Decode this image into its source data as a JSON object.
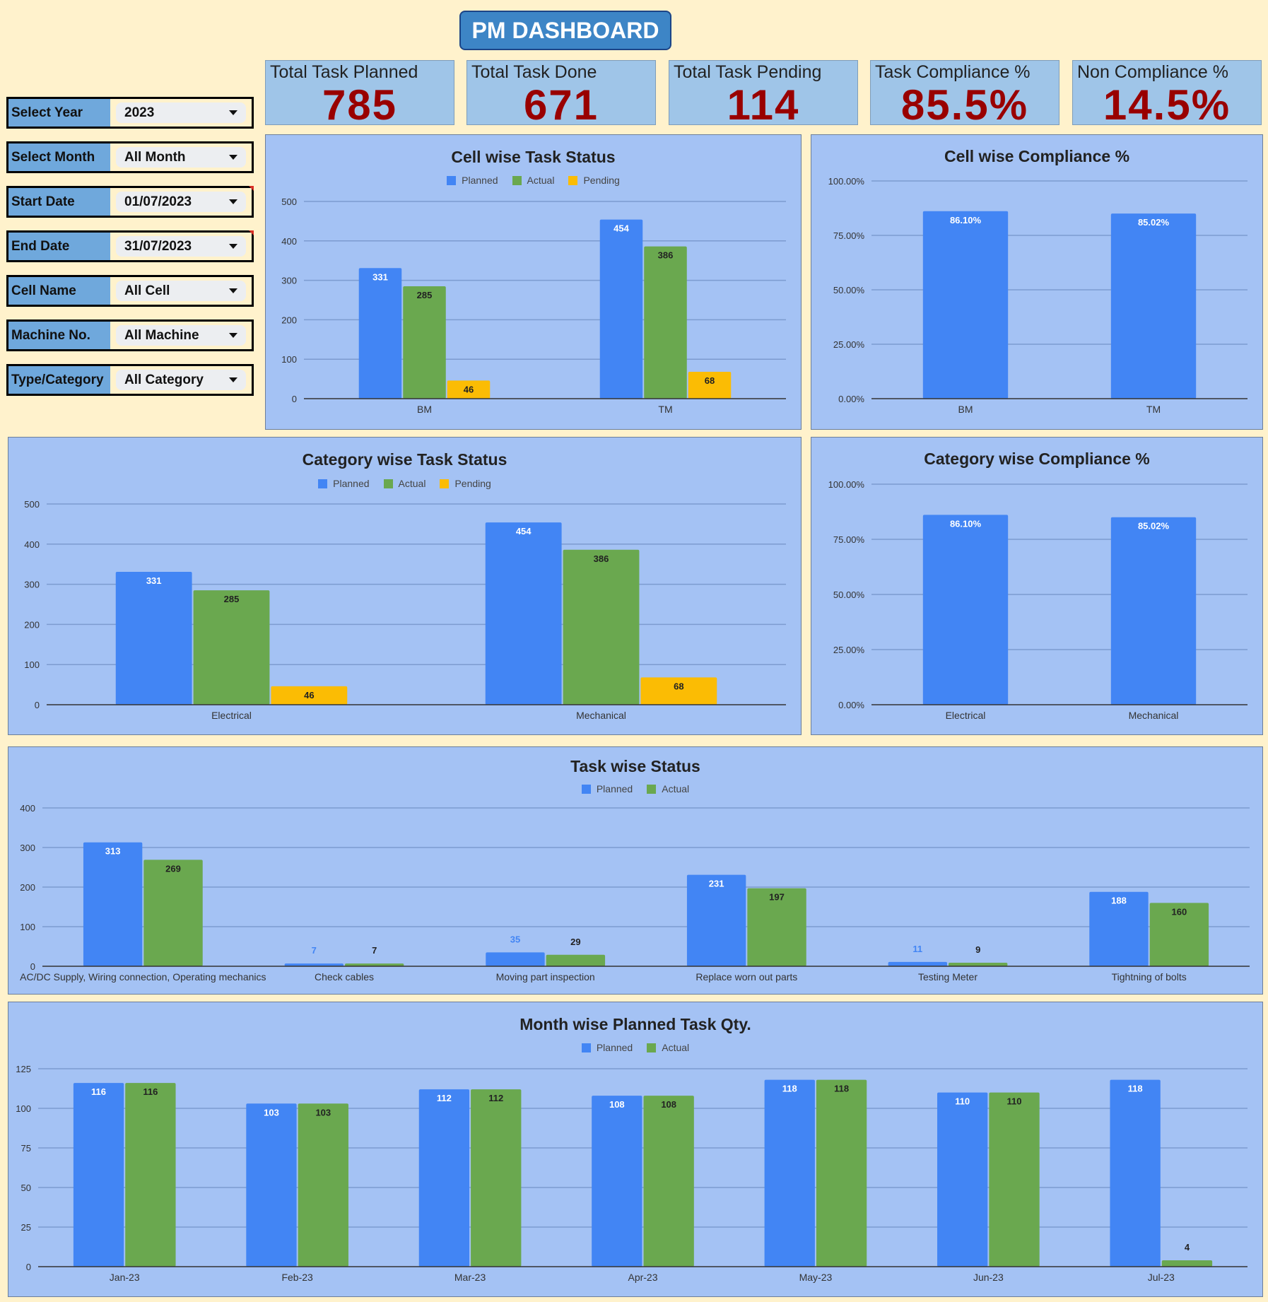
{
  "header": {
    "title": "PM DASHBOARD"
  },
  "kpis": [
    {
      "label": "Total Task Planned",
      "value": "785"
    },
    {
      "label": "Total Task Done",
      "value": "671"
    },
    {
      "label": "Total Task Pending",
      "value": "114"
    },
    {
      "label": "Task Compliance %",
      "value": "85.5%"
    },
    {
      "label": "Non Compliance %",
      "value": "14.5%"
    }
  ],
  "filters": [
    {
      "label": "Select Year",
      "value": "2023"
    },
    {
      "label": "Select Month",
      "value": "All Month"
    },
    {
      "label": "Start Date",
      "value": "01/07/2023"
    },
    {
      "label": "End Date",
      "value": "31/07/2023"
    },
    {
      "label": "Cell Name",
      "value": "All Cell"
    },
    {
      "label": "Machine No.",
      "value": "All Machine"
    },
    {
      "label": "Type/Category",
      "value": "All Category"
    }
  ],
  "colors": {
    "planned": "#4285f4",
    "actual": "#6aa84f",
    "pending": "#fbbc04",
    "chart_bg": "#a4c2f4",
    "kpi_value": "#990000"
  },
  "chart_data": [
    {
      "type": "bar",
      "title": "Cell wise Task Status",
      "categories": [
        "BM",
        "TM"
      ],
      "ylim": [
        0,
        500
      ],
      "yticks": [
        "0",
        "100",
        "200",
        "300",
        "400",
        "500"
      ],
      "legend": "top",
      "grid": true,
      "series": [
        {
          "name": "Planned",
          "values": [
            331,
            454
          ],
          "labels": [
            "331",
            "454"
          ]
        },
        {
          "name": "Actual",
          "values": [
            285,
            386
          ],
          "labels": [
            "285",
            "386"
          ]
        },
        {
          "name": "Pending",
          "values": [
            46,
            68
          ],
          "labels": [
            "46",
            "68"
          ]
        }
      ]
    },
    {
      "type": "bar",
      "title": "Cell wise Compliance %",
      "categories": [
        "BM",
        "TM"
      ],
      "ylim": [
        0,
        100
      ],
      "yticks": [
        "0.00%",
        "25.00%",
        "50.00%",
        "75.00%",
        "100.00%"
      ],
      "grid": true,
      "series": [
        {
          "values": [
            86.1,
            85.02
          ],
          "labels": [
            "86.10%",
            "85.02%"
          ]
        }
      ]
    },
    {
      "type": "bar",
      "title": "Category wise Task Status",
      "categories": [
        "Electrical",
        "Mechanical"
      ],
      "ylim": [
        0,
        500
      ],
      "yticks": [
        "0",
        "100",
        "200",
        "300",
        "400",
        "500"
      ],
      "legend": "top",
      "grid": true,
      "series": [
        {
          "name": "Planned",
          "values": [
            331,
            454
          ],
          "labels": [
            "331",
            "454"
          ]
        },
        {
          "name": "Actual",
          "values": [
            285,
            386
          ],
          "labels": [
            "285",
            "386"
          ]
        },
        {
          "name": "Pending",
          "values": [
            46,
            68
          ],
          "labels": [
            "46",
            "68"
          ]
        }
      ]
    },
    {
      "type": "bar",
      "title": "Category wise Compliance %",
      "categories": [
        "Electrical",
        "Mechanical"
      ],
      "ylim": [
        0,
        100
      ],
      "yticks": [
        "0.00%",
        "25.00%",
        "50.00%",
        "75.00%",
        "100.00%"
      ],
      "grid": true,
      "series": [
        {
          "values": [
            86.1,
            85.02
          ],
          "labels": [
            "86.10%",
            "85.02%"
          ]
        }
      ]
    },
    {
      "type": "bar",
      "title": "Task  wise Status",
      "categories": [
        "AC/DC Supply, Wiring connection, Operating mechanics",
        "Check cables",
        "Moving part inspection",
        "Replace worn out parts",
        "Testing Meter",
        "Tightning of bolts"
      ],
      "ylim": [
        0,
        400
      ],
      "yticks": [
        "0",
        "100",
        "200",
        "300",
        "400"
      ],
      "legend": "top",
      "grid": true,
      "series": [
        {
          "name": "Planned",
          "values": [
            313,
            7,
            35,
            231,
            11,
            188
          ],
          "labels": [
            "313",
            "7",
            "35",
            "231",
            "11",
            "188"
          ]
        },
        {
          "name": "Actual",
          "values": [
            269,
            7,
            29,
            197,
            9,
            160
          ],
          "labels": [
            "269",
            "7",
            "29",
            "197",
            "9",
            "160"
          ]
        }
      ]
    },
    {
      "type": "bar",
      "title": "Month wise Planned Task Qty.",
      "categories": [
        "Jan-23",
        "Feb-23",
        "Mar-23",
        "Apr-23",
        "May-23",
        "Jun-23",
        "Jul-23"
      ],
      "ylim": [
        0,
        125
      ],
      "yticks": [
        "0",
        "25",
        "50",
        "75",
        "100",
        "125"
      ],
      "legend": "top",
      "grid": true,
      "series": [
        {
          "name": "Planned",
          "values": [
            116,
            103,
            112,
            108,
            118,
            110,
            118
          ],
          "labels": [
            "116",
            "103",
            "112",
            "108",
            "118",
            "110",
            "118"
          ]
        },
        {
          "name": "Actual",
          "values": [
            116,
            103,
            112,
            108,
            118,
            110,
            4
          ],
          "labels": [
            "116",
            "103",
            "112",
            "108",
            "118",
            "110",
            "4"
          ]
        }
      ]
    }
  ]
}
